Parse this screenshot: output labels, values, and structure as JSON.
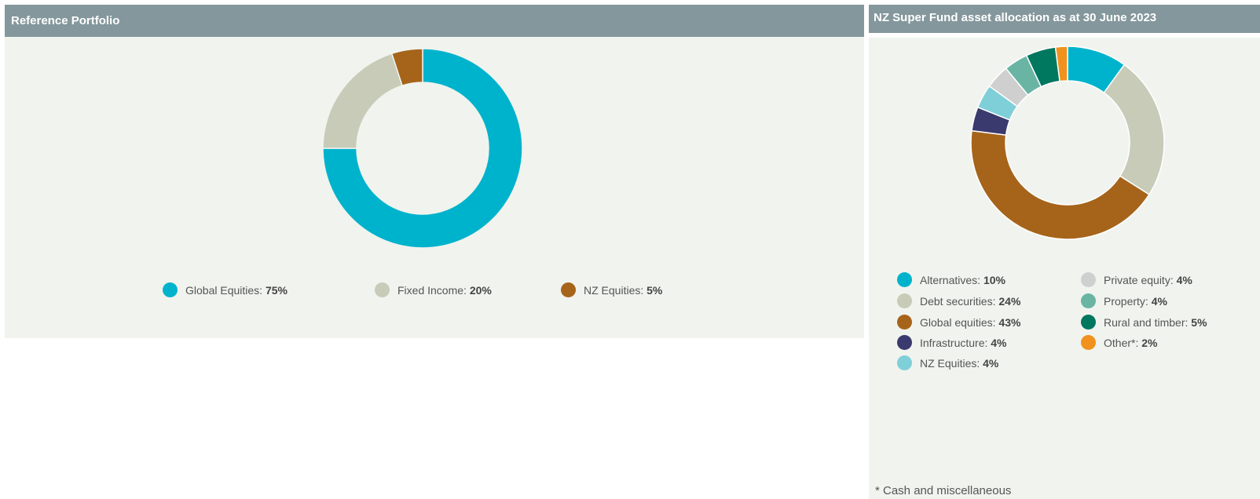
{
  "chart_data": [
    {
      "type": "pie",
      "title": "Reference Portfolio",
      "categories": [
        "Global Equities",
        "Fixed Income",
        "NZ Equities"
      ],
      "values": [
        75,
        20,
        5
      ],
      "value_labels": [
        "75%",
        "20%",
        "5%"
      ],
      "colors": [
        "#00b3cc",
        "#c8cbb8",
        "#a6641a"
      ],
      "donut": true,
      "legend_position": "bottom"
    },
    {
      "type": "pie",
      "title": "NZ Super Fund asset allocation as at 30 June 2023",
      "categories": [
        "Alternatives",
        "Debt securities",
        "Global equities",
        "Infrastructure",
        "NZ Equities",
        "Private equity",
        "Property",
        "Rural and timber",
        "Other*"
      ],
      "values": [
        10,
        24,
        43,
        4,
        4,
        4,
        4,
        5,
        2
      ],
      "value_labels": [
        "10%",
        "24%",
        "43%",
        "4%",
        "4%",
        "4%",
        "4%",
        "5%",
        "2%"
      ],
      "colors": [
        "#00b3cc",
        "#c8cbb8",
        "#a6641a",
        "#3a3a6e",
        "#7fcfd8",
        "#cfcfcf",
        "#6ab4a4",
        "#00775f",
        "#f0921d"
      ],
      "donut": true,
      "legend_position": "bottom",
      "footnote": "* Cash and miscellaneous"
    }
  ]
}
